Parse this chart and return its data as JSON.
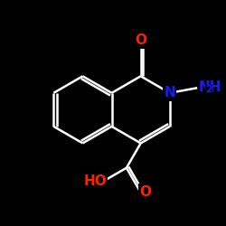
{
  "background_color": "#000000",
  "bond_color": "#ffffff",
  "bond_width": 1.8,
  "atom_colors": {
    "O": "#ff2200",
    "N": "#1a1aff",
    "C": "#ffffff",
    "H": "#ffffff"
  },
  "font_size_atom": 11,
  "font_size_sub": 8
}
